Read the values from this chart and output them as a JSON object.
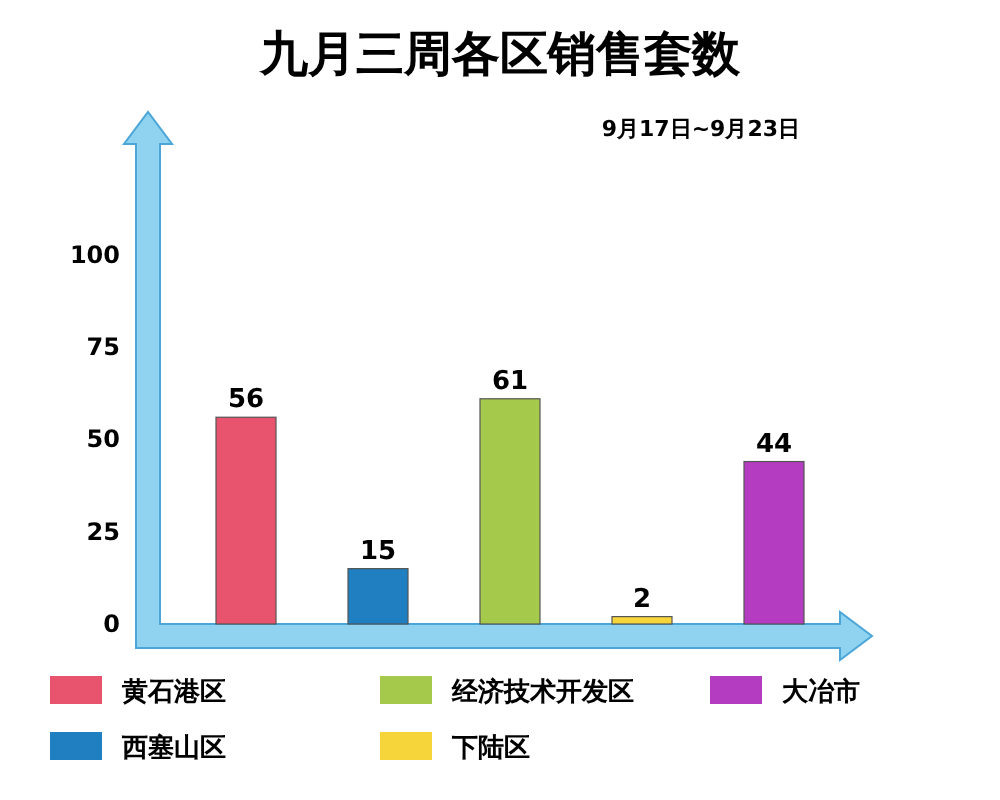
{
  "chart_data": {
    "type": "bar",
    "title": "九月三周各区销售套数",
    "subtitle": "9月17日~9月23日",
    "categories": [
      null,
      null,
      null,
      null,
      null
    ],
    "series": [
      {
        "name": "黄石港区",
        "color": "#e8536e",
        "values": [
          56,
          null,
          null,
          null,
          null
        ]
      },
      {
        "name": "西塞山区",
        "color": "#1f7fc0",
        "values": [
          null,
          15,
          null,
          null,
          null
        ]
      },
      {
        "name": "经济技术开发区",
        "color": "#a5c94a",
        "values": [
          null,
          null,
          61,
          null,
          null
        ]
      },
      {
        "name": "下陆区",
        "color": "#f5d53a",
        "values": [
          null,
          null,
          null,
          2,
          null
        ]
      },
      {
        "name": "大冶市",
        "color": "#b33cc0",
        "values": [
          null,
          null,
          null,
          null,
          44
        ]
      }
    ],
    "stacked": true,
    "ylim": [
      0,
      130
    ],
    "yticks": [
      0,
      25,
      50,
      75,
      100
    ],
    "data_labels": true,
    "legend": "bottom",
    "tick_labels": "y",
    "grid": false
  }
}
